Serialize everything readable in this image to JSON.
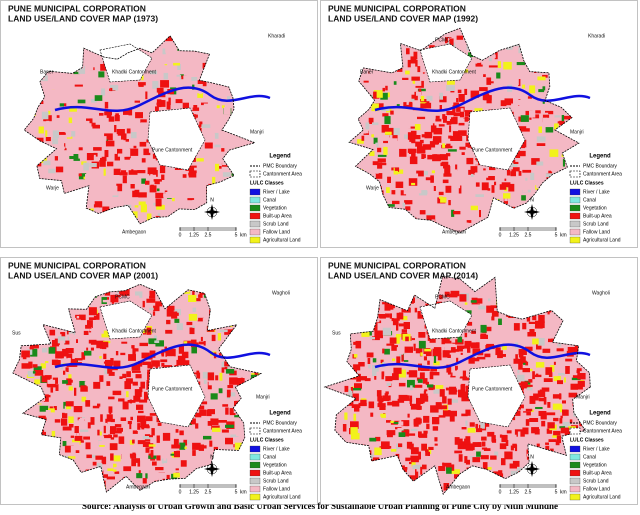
{
  "maps": [
    {
      "title_line1": "PUNE MUNICIPAL CORPORATION",
      "title_line2": "LAND USE/LAND COVER MAP (1973)",
      "places": [
        "Kharadi",
        "Baner",
        "Khadki Cantonment",
        "Manjri",
        "Pune Cantonment",
        "Warje",
        "Ambegaon"
      ]
    },
    {
      "title_line1": "PUNE MUNICIPAL CORPORATION",
      "title_line2": "LAND USE/LAND COVER MAP (1992)",
      "places": [
        "PCMC",
        "Kharadi",
        "Baner",
        "Khadki Cantonment",
        "Manjri",
        "Pune Cantonment",
        "Warje",
        "Ambegaon"
      ]
    },
    {
      "title_line1": "PUNE MUNICIPAL CORPORATION",
      "title_line2": "LAND USE/LAND COVER MAP (2001)",
      "places": [
        "PCMC",
        "Wagholi",
        "Sus",
        "Khadki Cantonment",
        "Pune Cantonment",
        "Manjri",
        "Ambegaon"
      ]
    },
    {
      "title_line1": "PUNE MUNICIPAL CORPORATION",
      "title_line2": "LAND USE/LAND COVER MAP (2014)",
      "places": [
        "PCMC",
        "Wagholi",
        "Sus",
        "Khadki Cantonment",
        "Pune Cantonment",
        "Manjri",
        "Ambegaon"
      ]
    }
  ],
  "legend": {
    "title": "Legend",
    "boundary": "PMC Boundary",
    "cantonment": "Cantonment Area",
    "classes_title": "LULC Classes",
    "classes": [
      {
        "name": "River / Lake",
        "color": "#1010e0"
      },
      {
        "name": "Canal",
        "color": "#7fe8e0"
      },
      {
        "name": "Vegetation",
        "color": "#1a8a1a"
      },
      {
        "name": "Built-up Area",
        "color": "#ee1111"
      },
      {
        "name": "Scrub Land",
        "color": "#c8c8c8"
      },
      {
        "name": "Fallow Land",
        "color": "#f4b8c4"
      },
      {
        "name": "Agricultural Land",
        "color": "#f2f21a"
      }
    ]
  },
  "scale": {
    "ticks": [
      0,
      1.25,
      2.5,
      5
    ],
    "unit": "km"
  },
  "north": "N",
  "source": "Source: Analysis of Urban Growth and Basic Urban Services for Sustainable Urban Planning of Pune City by Nitin Mundhe"
}
